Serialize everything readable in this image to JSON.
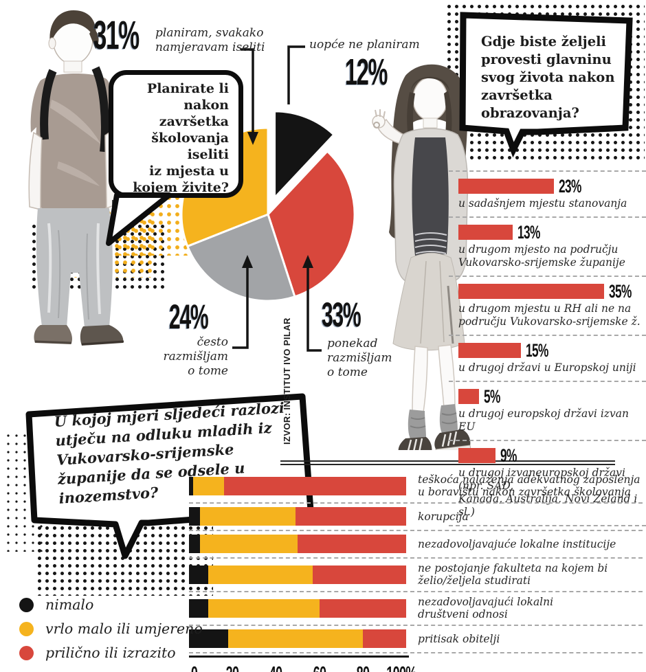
{
  "source_note": "IZVOR: INSTITUT IVO PILAR",
  "colors": {
    "yellow": "#F5B31E",
    "red": "#D8473C",
    "gray": "#A2A4A7",
    "black": "#141414"
  },
  "bubbles": {
    "pie_question": "Planirate li\nnakon\nzavršetka\nškolovanja\niseliti\niz mjesta u\nkojem živite?",
    "destination_question": "Gdje biste željeli\nprovesti glavninu\nsvog života nakon\nzavršetka\nobrazovanja?",
    "reasons_question": "U kojoj mjeri sljedeći razlozi\nutječu na odluku mladih iz\nVukovarsko-srijemske\nžupanije da se odsele u inozemstvo?"
  },
  "chart_data": [
    {
      "type": "pie",
      "title": "Planirate li nakon završetka školovanja iseliti iz mjesta u kojem živite?",
      "unit": "%",
      "slices": [
        {
          "label": "uopće ne planiram",
          "pct": "12%",
          "value": 12,
          "color": "black",
          "exploded": true
        },
        {
          "label": "ponekad\nrazmišljam\no tome",
          "pct": "33%",
          "value": 33,
          "color": "red"
        },
        {
          "label": "često\nrazmišljam\no tome",
          "pct": "24%",
          "value": 24,
          "color": "gray"
        },
        {
          "label": "planiram, svakako\nnamjeravam iseliti",
          "pct": "31%",
          "value": 31,
          "color": "yellow"
        }
      ]
    },
    {
      "type": "bar",
      "title": "Gdje biste željeli provesti glavninu svog života nakon završetka obrazovanja?",
      "unit": "%",
      "rows": [
        {
          "pct": "23%",
          "value": 23,
          "label": "u sadašnjem mjestu stanovanja"
        },
        {
          "pct": "13%",
          "value": 13,
          "label": "u drugom mjesto na području\nVukovarsko-srijemske županije"
        },
        {
          "pct": "35%",
          "value": 35,
          "label": "u drugom mjestu u RH ali ne na\npodručju Vukovarsko-srijemske ž."
        },
        {
          "pct": "15%",
          "value": 15,
          "label": "u drugoj državi u Europskoj uniji"
        },
        {
          "pct": "5%",
          "value": 5,
          "label": "u drugoj europskoj državi izvan EU"
        },
        {
          "pct": "9%",
          "value": 9,
          "label": "u drugoj izvaneuropskoj državi (npr. SAD,\nKanada, Australija, Novi Zeland i sl.)"
        }
      ]
    },
    {
      "type": "stacked_bar",
      "title": "U kojoj mjeri sljedeći razlozi utječu na odluku mladih iz Vukovarsko-srijemske županije da se odsele u inozemstvo?",
      "series": [
        "nimalo",
        "vrlo malo ili umjereno",
        "prilično ili izrazito"
      ],
      "series_colors": [
        "black",
        "yellow",
        "red"
      ],
      "axis_ticks": [
        "0",
        "20",
        "40",
        "60",
        "80",
        "100%"
      ],
      "xlim": [
        0,
        100
      ],
      "rows": [
        {
          "label": "teškoća nalaženja adekvatnog zaposlenja\nu boravištu nakon završetka školovanja",
          "values": [
            2,
            14,
            84
          ]
        },
        {
          "label": "korupcija",
          "values": [
            5,
            44,
            51
          ]
        },
        {
          "label": "nezadovoljavajuće lokalne institucije",
          "values": [
            5,
            45,
            50
          ]
        },
        {
          "label": "ne postojanje fakulteta na kojem bi\nželio/željela studirati",
          "values": [
            9,
            48,
            43
          ]
        },
        {
          "label": "nezadovoljavajući lokalni\ndruštveni odnosi",
          "values": [
            9,
            51,
            40
          ]
        },
        {
          "label": "pritisak obitelji",
          "values": [
            18,
            62,
            20
          ]
        }
      ]
    }
  ]
}
